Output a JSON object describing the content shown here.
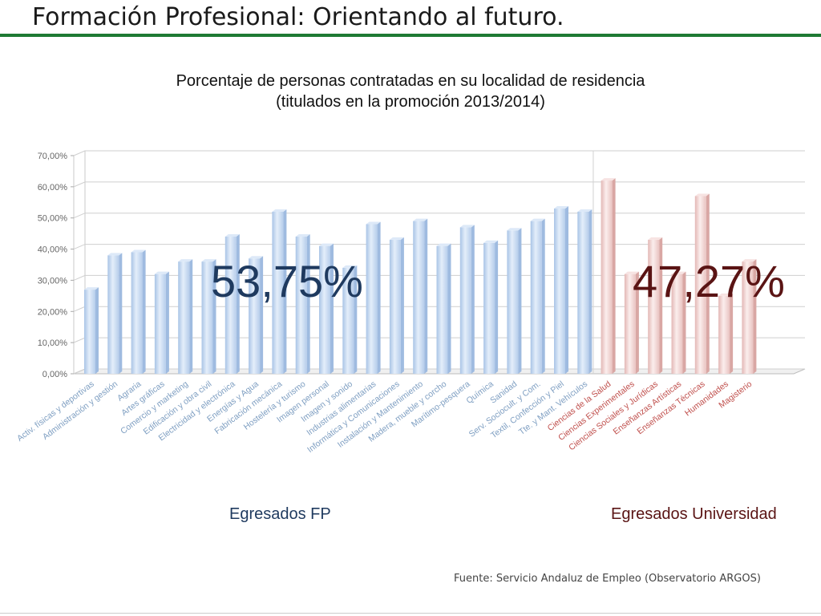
{
  "slide_title": "Formación Profesional: Orientando al futuro.",
  "chart_data": {
    "type": "bar",
    "title": "Porcentaje de personas contratadas en su localidad de residencia",
    "subtitle": "(titulados en la promoción 2013/2014)",
    "y_ticks": [
      "0,00%",
      "10,00%",
      "20,00%",
      "30,00%",
      "40,00%",
      "50,00%",
      "60,00%",
      "70,00%"
    ],
    "ylim": [
      0,
      70
    ],
    "grid": true,
    "groups": [
      {
        "name": "Egresados FP",
        "overall": "53,75%",
        "color": "#c5d9f1",
        "label_color": "#1f3a5f",
        "tick_color": "#7f9fc2",
        "categories": [
          "Activ. físicas y deportivas",
          "Administración y gestión",
          "Agraria",
          "Artes gráficas",
          "Comercio y marketing",
          "Edificación y obra civil",
          "Electricidad y electrónica",
          "Energías y Agua",
          "Fabricación mecánica",
          "Hostelería y turismo",
          "Imagen personal",
          "Imagen y sonido",
          "Industrias alimentarias",
          "Informática y Comunicaciones",
          "Instalación y Mantenimiento",
          "Madera, mueble y corcho",
          "Marítimo-pesquera",
          "Química",
          "Sanidad",
          "Serv. Sociocult. y Com.",
          "Textil, Confección y Piel",
          "Tte. y Mant. Vehículos"
        ],
        "values": [
          27,
          38,
          39,
          32,
          36,
          36,
          44,
          37,
          52,
          44,
          41,
          34,
          48,
          43,
          49,
          41,
          47,
          42,
          46,
          49,
          53,
          52
        ]
      },
      {
        "name": "Egresados Universidad",
        "overall": "47,27%",
        "color": "#f2dcdb",
        "label_color": "#5a1414",
        "tick_color": "#c0504d",
        "categories": [
          "Ciencias de la Salud",
          "Ciencias Experimentales",
          "Ciencias Sociales y Jurídicas",
          "Enseñanzas Artísticas",
          "Enseñanzas Técnicas",
          "Humanidades",
          "Magisterio"
        ],
        "values": [
          62,
          32,
          43,
          32,
          57,
          25,
          36
        ]
      }
    ]
  },
  "source": "Fuente: Servicio Andaluz de Empleo (Observatorio ARGOS)"
}
